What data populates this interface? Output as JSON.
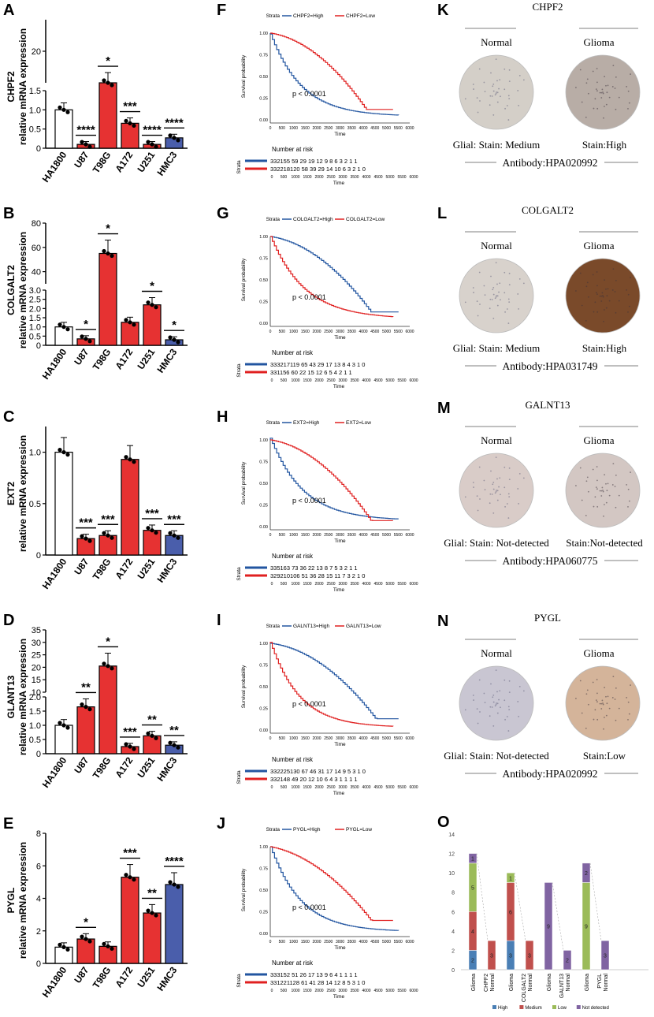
{
  "bar_panels": [
    {
      "letter": "A",
      "gene": "CHPF2",
      "ylabel_line2": "relative mRNA expression",
      "bar_values": [
        1.0,
        0.1,
        10.5,
        0.65,
        0.1,
        0.27
      ],
      "sigs": [
        "",
        "****",
        "*",
        "***",
        "****",
        "****"
      ]
    },
    {
      "letter": "B",
      "gene": "COLGALT2",
      "ylabel_line2": "relative mRNA expression",
      "bar_values": [
        1.0,
        0.35,
        55,
        1.25,
        2.2,
        0.3
      ],
      "sigs": [
        "",
        "*",
        "*",
        "",
        "*",
        "*"
      ]
    },
    {
      "letter": "C",
      "gene": "EXT2",
      "ylabel_line2": "relative mRNA expression",
      "bar_values": [
        1.0,
        0.16,
        0.19,
        0.93,
        0.24,
        0.19
      ],
      "sigs": [
        "",
        "***",
        "***",
        "",
        "***",
        "***"
      ]
    },
    {
      "letter": "D",
      "gene": "GLANT13",
      "ylabel_line2": "relative mRNA expression",
      "bar_values": [
        1.0,
        1.65,
        20.5,
        0.25,
        0.63,
        0.3
      ],
      "sigs": [
        "",
        "**",
        "*",
        "***",
        "**",
        "**"
      ]
    },
    {
      "letter": "E",
      "gene": "PYGL",
      "ylabel_line2": "relative mRNA expression",
      "bar_values": [
        1.0,
        1.5,
        1.05,
        5.3,
        3.1,
        4.85
      ],
      "sigs": [
        "",
        "*",
        "",
        "***",
        "**",
        "****"
      ]
    }
  ],
  "cell_lines": [
    "HA1800",
    "U87",
    "T98G",
    "A172",
    "U251",
    "HMC3"
  ],
  "bar_colors": [
    "#ffffff",
    "#e63232",
    "#e63232",
    "#e63232",
    "#e63232",
    "#4a5eab"
  ],
  "km_common": {
    "strata_title": "Strata",
    "xlabel": "Time",
    "ylabel": "Survival probability",
    "pval": "p < 0.0001",
    "risk_title": "Number at risk",
    "risk_axis": "Strata",
    "xticks": [
      "0",
      "500",
      "1000",
      "1500",
      "2000",
      "2500",
      "3000",
      "3500",
      "4000",
      "4500",
      "5000",
      "5500",
      "6000"
    ],
    "yticks": [
      "0.00",
      "0.25",
      "0.50",
      "0.75",
      "1.00"
    ]
  },
  "km_panels": [
    {
      "letter": "F",
      "high": "CHPF2=High",
      "low": "CHPF2=Low",
      "risk_high": "332155 59  29  19  12   9    8    6    3    2    1    1",
      "risk_low": "332218120 58  39  29  14  10   6    3    2    1    0"
    },
    {
      "letter": "G",
      "high": "COLGALT2=High",
      "low": "COLGALT2=Low",
      "risk_high": "333217119 65  43  29  17  13   8    4    3    1    0",
      "risk_low": "331156 60  22  15  12   6    5    4    2    1    1"
    },
    {
      "letter": "H",
      "high": "EXT2=High",
      "low": "EXT2=Low",
      "risk_high": "335163 73  36  22  13   8    7    5    3    2    1    1",
      "risk_low": "329210106 51  36  28  15  11   7    3    2    1    0"
    },
    {
      "letter": "I",
      "high": "GALNT13=High",
      "low": "GALNT13=Low",
      "risk_high": "332225130 67  46  31  17  14   9    5    3    1    0",
      "risk_low": "332148 49  20  12  10   6    4    3    1    1    1    1"
    },
    {
      "letter": "J",
      "high": "PYGL=High",
      "low": "PYGL=Low",
      "risk_high": "333152 51  26  17  13   9    6    4    1    1    1    1",
      "risk_low": "331221128 61  41  28  14  12   8    5    3    1    0"
    }
  ],
  "ihc_panels": [
    {
      "letter": "K",
      "gene": "CHPF2",
      "normal": "Normal",
      "glioma": "Glioma",
      "stain_normal": "Glial: Stain: Medium",
      "stain_glioma": "Stain:High",
      "antibody": "Antibody:HPA020992",
      "normal_color": "#d4cfc8",
      "glioma_color": "#b8ada6"
    },
    {
      "letter": "L",
      "gene": "COLGALT2",
      "normal": "Normal",
      "glioma": "Glioma",
      "stain_normal": "Glial: Stain: Medium",
      "stain_glioma": "Stain:High",
      "antibody": "Antibody:HPA031749",
      "normal_color": "#d8d2cc",
      "glioma_color": "#7a4a2a"
    },
    {
      "letter": "M",
      "gene": "GALNT13",
      "normal": "Normal",
      "glioma": "Glioma",
      "stain_normal": "Glial: Stain: Not-detected",
      "stain_glioma": "Stain:Not-detected",
      "antibody": "Antibody:HPA060775",
      "normal_color": "#d9ccc8",
      "glioma_color": "#d3c7c3"
    },
    {
      "letter": "N",
      "gene": "PYGL",
      "normal": "Normal",
      "glioma": "Glioma",
      "stain_normal": "Glial: Stain: Not-detected",
      "stain_glioma": "Stain:Low",
      "antibody": "Antibody:HPA020992",
      "normal_color": "#c9c6d2",
      "glioma_color": "#d4b49a"
    }
  ],
  "chart_data": {
    "type": "bar",
    "letter": "O",
    "stacked": true,
    "categories": [
      "Glioma",
      "Normal",
      "Glioma",
      "Normal",
      "Glioma",
      "Normal",
      "Glioma",
      "Normal"
    ],
    "groups": [
      "CHPF2",
      "COLGALT2",
      "GALNT13",
      "PYGL"
    ],
    "ylim": [
      0,
      14
    ],
    "yticks": [
      "0",
      "2",
      "4",
      "6",
      "8",
      "10",
      "12",
      "14"
    ],
    "series": [
      {
        "name": "High",
        "color": "#4a7fb5",
        "values": [
          2,
          0,
          3,
          0,
          0,
          0,
          0,
          0
        ]
      },
      {
        "name": "Medium",
        "color": "#c0504d",
        "values": [
          4,
          3,
          6,
          3,
          0,
          0,
          0,
          0
        ]
      },
      {
        "name": "Low",
        "color": "#9bbb59",
        "values": [
          5,
          0,
          1,
          0,
          0,
          0,
          9,
          0
        ]
      },
      {
        "name": "Not detected",
        "color": "#8064a2",
        "values": [
          1,
          0,
          0,
          0,
          9,
          2,
          2,
          3
        ]
      }
    ],
    "legend_position": "bottom"
  }
}
